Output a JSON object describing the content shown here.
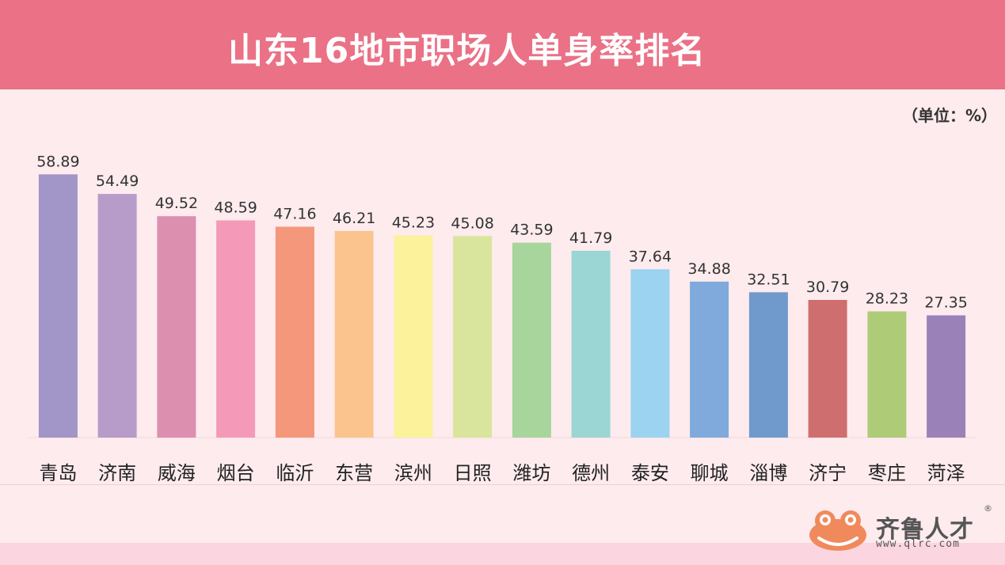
{
  "header": {
    "title": "山东16地市职场人单身率排名"
  },
  "unit_label": "（单位：%）",
  "logo": {
    "name": "齐鲁人才",
    "url": "www.qlrc.com",
    "reg": "®"
  },
  "chart_data": {
    "type": "bar",
    "title": "山东16地市职场人单身率排名",
    "ylabel": "",
    "xlabel": "",
    "unit": "%",
    "ylim": [
      0,
      60
    ],
    "grid": false,
    "categories": [
      "青岛",
      "济南",
      "威海",
      "烟台",
      "临沂",
      "东营",
      "滨州",
      "日照",
      "潍坊",
      "德州",
      "泰安",
      "聊城",
      "淄博",
      "济宁",
      "枣庄",
      "菏泽"
    ],
    "values": [
      58.89,
      54.49,
      49.52,
      48.59,
      47.16,
      46.21,
      45.23,
      45.08,
      43.59,
      41.79,
      37.64,
      34.88,
      32.51,
      30.79,
      28.23,
      27.35
    ],
    "value_labels": [
      "58.89",
      "54.49",
      "49.52",
      "48.59",
      "47.16",
      "46.21",
      "45.23",
      "45.08",
      "43.59",
      "41.79",
      "37.64",
      "34.88",
      "32.51",
      "30.79",
      "28.23",
      "27.35"
    ],
    "colors": [
      "#a295c7",
      "#b79bc9",
      "#dd8fb0",
      "#f49ab8",
      "#f4977a",
      "#fbc48f",
      "#fbf29b",
      "#d9e59c",
      "#a8d59c",
      "#9bd6d4",
      "#9bd3f0",
      "#7faadb",
      "#719acc",
      "#cf6e6e",
      "#aecb78",
      "#9a82b8"
    ]
  }
}
